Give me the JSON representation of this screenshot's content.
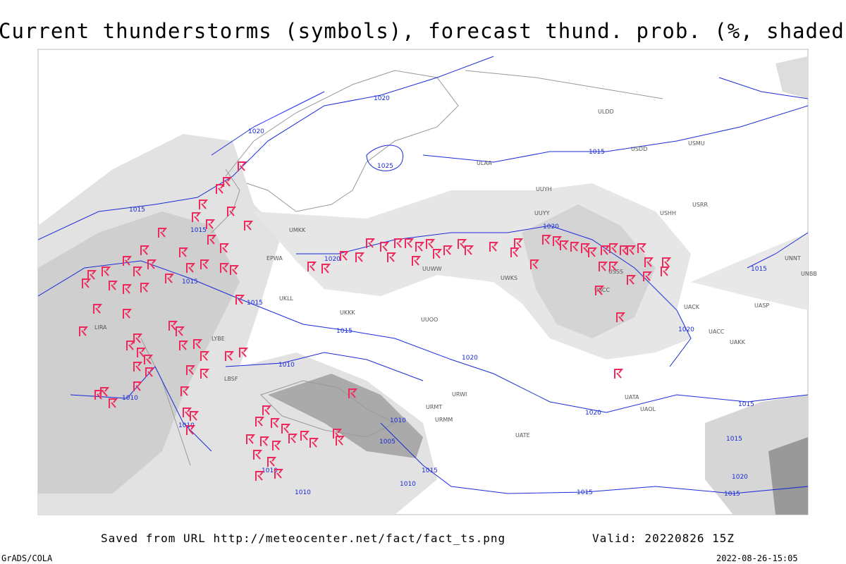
{
  "header": {
    "title": "Current thunderstorms (symbols), forecast thund. prob. (%, shaded)"
  },
  "isobar_labels": [
    "1020",
    "1020",
    "1015",
    "1015",
    "1020",
    "1015",
    "1015",
    "1015",
    "1010",
    "1020",
    "1010",
    "1010",
    "1010",
    "1005",
    "1015",
    "1010",
    "1010",
    "1010",
    "1015",
    "1020",
    "1015",
    "1015",
    "1020",
    "1015",
    "1020",
    "1015",
    "1015",
    "1020",
    "1025"
  ],
  "stations": [
    "ULAA",
    "UUYH",
    "USSS",
    "USCC",
    "UACK",
    "UASP",
    "UUWW",
    "UKKK",
    "LBSF",
    "URWI",
    "URMM",
    "UATE",
    "USHH",
    "UNNT",
    "USDD",
    "ULDD",
    "UUOO",
    "UWKS",
    "UMKK",
    "EPWA",
    "UKLL",
    "LIRA",
    "LYBE",
    "URMT",
    "UUYY",
    "UACC",
    "UAKK",
    "UAOL",
    "UATA",
    "USRR",
    "USMU",
    "UNBB"
  ],
  "footer": {
    "source": "Saved from URL http://meteocenter.net/fact/fact_ts.png",
    "valid": "Valid: 20220826 15Z",
    "credit": "GrADS/COLA",
    "timestamp": "2022-08-26-15:05"
  }
}
